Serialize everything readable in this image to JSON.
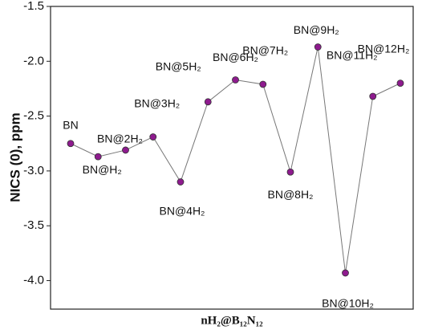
{
  "chart_data": {
    "type": "line",
    "categories": [
      "BN",
      "BN@H₂",
      "BN@2H₂",
      "BN@3H₂",
      "BN@4H₂",
      "BN@5H₂",
      "BN@6H₂",
      "BN@7H₂",
      "BN@8H₂",
      "BN@9H₂",
      "BN@10H₂",
      "BN@11H₂",
      "BN@12H₂"
    ],
    "series": [
      {
        "color": "#8e1b8e",
        "values": [
          -2.75,
          -2.87,
          -2.81,
          -2.69,
          -3.1,
          -2.37,
          -2.17,
          -2.21,
          -3.01,
          -1.87,
          -3.93,
          -2.32,
          -2.2
        ]
      }
    ],
    "ylabel": "NICS (0), ppm",
    "xlabel": "nH₂@B₁₂N₁₂",
    "ylim": [
      -4.26,
      -1.5
    ],
    "yticks": [
      -1.5,
      {
        "value": -2,
        "label": "-2.0"
      },
      -2.5,
      {
        "value": -3,
        "label": "-3.0"
      },
      -3.5,
      {
        "value": -4,
        "label": "-4.0"
      }
    ]
  }
}
